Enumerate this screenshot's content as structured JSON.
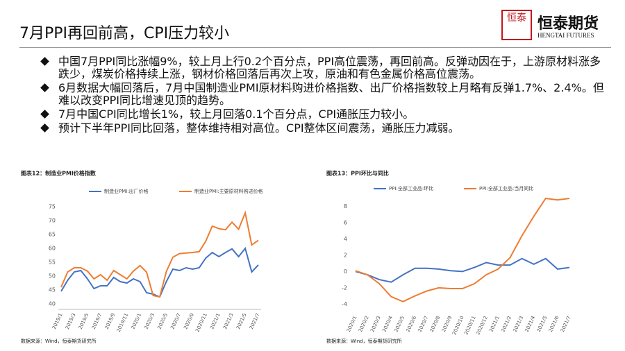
{
  "header": {
    "title": "7月PPI再回前高，CPI压力较小",
    "logo_mark": "恒泰",
    "logo_name": "恒泰期货",
    "logo_en": "HENGTAI FUTURES"
  },
  "bullets": [
    "中国7月PPI同比涨幅9%，较上月上行0.2个百分点，PPI高位震荡，再回前高。反弹动因在于，上游原材料涨多跌少，煤炭价格持续上涨，钢材价格回落后再次上攻，原油和有色金属价格高位震荡。",
    "6月数据大幅回落后，7月中国制造业PMI原材料购进价格指数、出厂价格指数较上月略有反弹1.7%、2.4%。但难以改变PPI同比增速见顶的趋势。",
    "7月中国CPI同比增长1%，较上月回落0.1个百分点，CPI通胀压力较小。",
    "预计下半年PPI同比回落，整体维持相对高位。CPI整体区间震荡，通胀压力减弱。"
  ],
  "chart_data": [
    {
      "type": "line",
      "title": "图表12：制造业PMI价格指数",
      "source": "数据来源：Wind，恒泰期货研究所",
      "categories": [
        "2019/1",
        null,
        "2019/3",
        null,
        "2019/5",
        null,
        "2019/7",
        null,
        "2019/9",
        null,
        "2019/11",
        null,
        "2020/1",
        null,
        "2020/3",
        null,
        "2020/5",
        null,
        "2020/7",
        null,
        "2020/9",
        null,
        "2020/11",
        null,
        "2021/1",
        null,
        "2021/3",
        null,
        "2021/5",
        null,
        "2021/7"
      ],
      "series": [
        {
          "name": "制造业PMI:出厂价格",
          "color": "#4472c4",
          "values": [
            44.5,
            48.5,
            51.5,
            52,
            49,
            45.5,
            46.5,
            46.5,
            49.5,
            48,
            47.5,
            49,
            48,
            44,
            43.5,
            42.5,
            48,
            52.5,
            52,
            53,
            52.5,
            53,
            56.5,
            58.5,
            57,
            58.5,
            59.8,
            57,
            60,
            51.5,
            54
          ]
        },
        {
          "name": "制造业PMI:主要原材料购进价格",
          "color": "#ed7d31",
          "values": [
            46,
            51.5,
            53,
            53,
            51.8,
            49,
            50.5,
            48.5,
            52,
            50.5,
            49,
            51.8,
            53.8,
            51.4,
            43,
            42.5,
            51.6,
            56.8,
            58.1,
            58.3,
            58.5,
            58.8,
            62.6,
            68,
            67.1,
            66.7,
            69.4,
            66.9,
            72.8,
            61.2,
            62.9
          ]
        }
      ],
      "ylim": [
        38,
        77
      ],
      "yticks": [
        40,
        45,
        50,
        55,
        60,
        65,
        70,
        75
      ]
    },
    {
      "type": "line",
      "title": "图表13：PPI环比与同比",
      "source": "数据来源：Wind，恒泰期货研究所",
      "categories": [
        "2020/1",
        "2020/2",
        "2020/3",
        "2020/4",
        "2020/5",
        "2020/6",
        "2020/7",
        "2020/8",
        "2020/9",
        "2020/10",
        "2020/11",
        "2020/12",
        "2021/1",
        "2021/2",
        "2021/3",
        "2021/4",
        "2021/5",
        "2021/6",
        "2021/7"
      ],
      "series": [
        {
          "name": "PPI:全部工业品:环比",
          "color": "#4472c4",
          "values": [
            0,
            -0.4,
            -1.0,
            -1.3,
            -0.4,
            0.4,
            0.4,
            0.3,
            0.1,
            0,
            0.5,
            1.1,
            0.8,
            0.8,
            1.6,
            0.9,
            1.6,
            0.3,
            0.5
          ]
        },
        {
          "name": "PPI:全部工业品:当月同比",
          "color": "#ed7d31",
          "values": [
            0.1,
            -0.4,
            -1.5,
            -3.1,
            -3.7,
            -3.0,
            -2.4,
            -2.0,
            -2.1,
            -2.1,
            -1.5,
            -0.4,
            0.3,
            1.7,
            4.4,
            6.8,
            9.0,
            8.8,
            9.0
          ]
        }
      ],
      "ylim": [
        -5,
        9
      ],
      "yticks": [
        -4,
        -2,
        0,
        2,
        4,
        6,
        8
      ]
    }
  ]
}
